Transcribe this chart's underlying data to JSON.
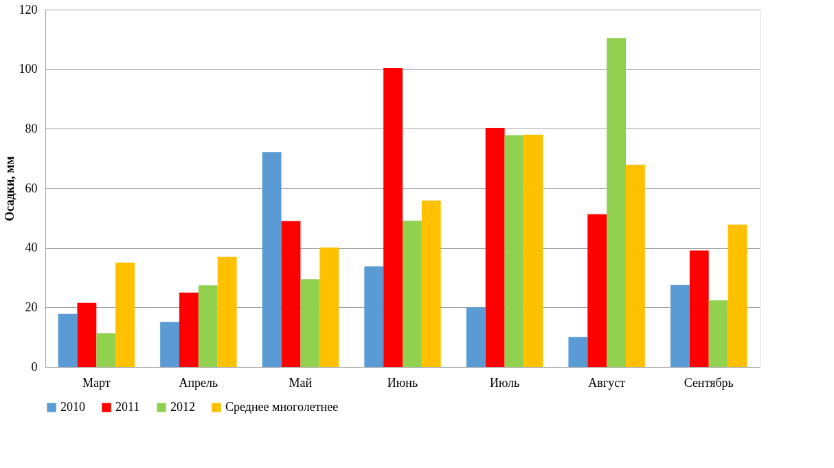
{
  "chart_data": {
    "type": "bar",
    "ylabel": "Осадки, мм",
    "categories": [
      "Март",
      "Апрель",
      "Май",
      "Июнь",
      "Июль",
      "Август",
      "Сентябрь"
    ],
    "series": [
      {
        "name": "2010",
        "color": "#5b9bd5",
        "values": [
          17.8,
          15.1,
          72.2,
          33.8,
          20.0,
          10.1,
          27.5
        ]
      },
      {
        "name": "2011",
        "color": "#ff0000",
        "values": [
          21.5,
          25.0,
          49.0,
          100.4,
          80.3,
          51.3,
          39.1
        ]
      },
      {
        "name": "2012",
        "color": "#92d050",
        "values": [
          11.3,
          27.4,
          29.5,
          49.1,
          77.8,
          110.5,
          22.4
        ]
      },
      {
        "name": "Среднее многолетнее",
        "color": "#ffc000",
        "values": [
          35.0,
          37.0,
          40.1,
          55.9,
          78.0,
          67.9,
          47.8
        ]
      }
    ],
    "ylim": [
      0,
      120
    ],
    "yticks": [
      0,
      20,
      40,
      60,
      80,
      100,
      120
    ],
    "grid": "y",
    "legend": "bottom"
  }
}
